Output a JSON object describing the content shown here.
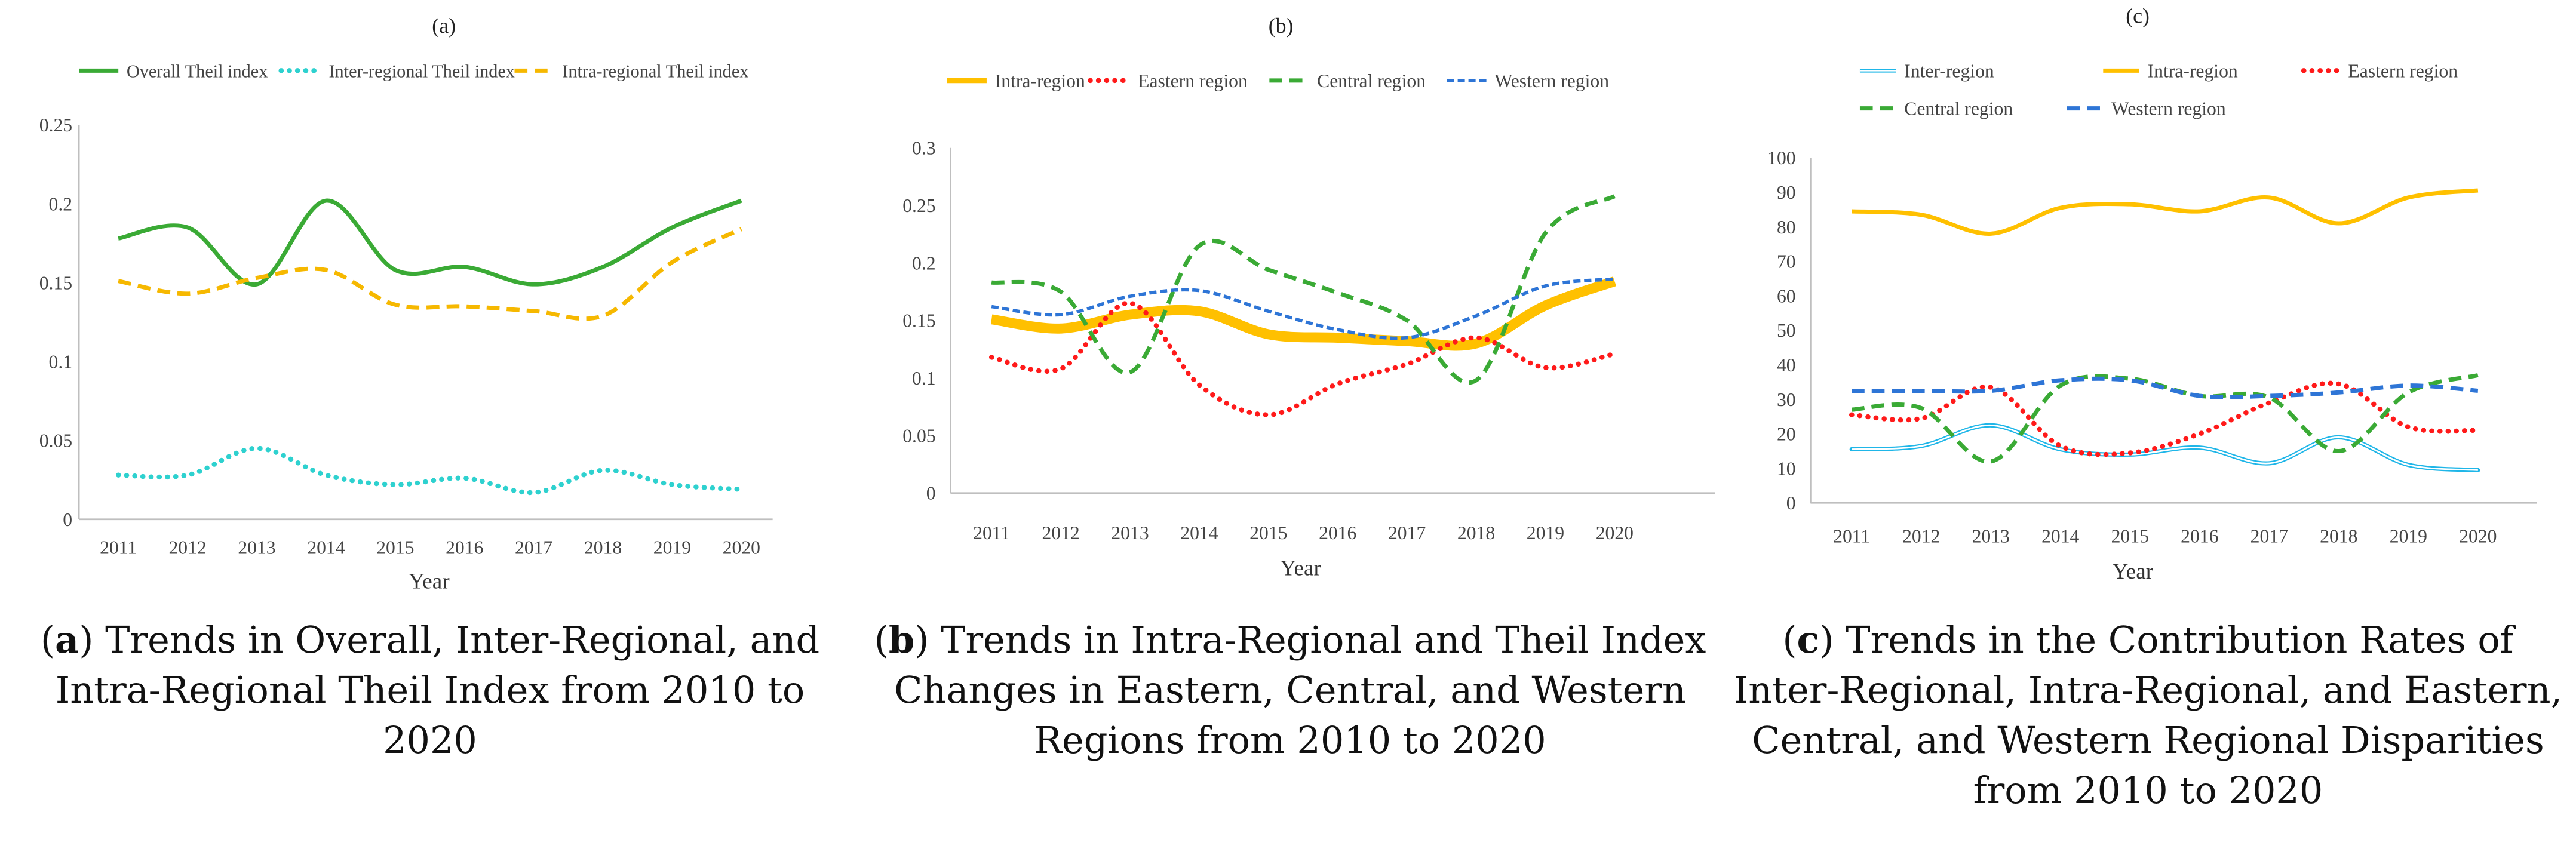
{
  "chart_data": [
    {
      "type": "line",
      "panel_label": "(a)",
      "title": "",
      "xlabel": "Year",
      "ylabel": "",
      "x": [
        "2011",
        "2012",
        "2013",
        "2014",
        "2015",
        "2016",
        "2017",
        "2018",
        "2019",
        "2020"
      ],
      "yticks": [
        "0",
        "0.05",
        "0.1",
        "0.15",
        "0.2",
        "0.25"
      ],
      "ylim": [
        0,
        0.25
      ],
      "legend_position": "top",
      "series": [
        {
          "name": "Overall Theil index",
          "color": "#3aaa35",
          "dash": "solid",
          "values": [
            0.178,
            0.185,
            0.149,
            0.202,
            0.158,
            0.16,
            0.149,
            0.16,
            0.185,
            0.202
          ]
        },
        {
          "name": "Inter-regional Theil index",
          "color": "#2ed1cf",
          "dash": "dot",
          "values": [
            0.028,
            0.028,
            0.045,
            0.028,
            0.022,
            0.026,
            0.017,
            0.031,
            0.022,
            0.019
          ]
        },
        {
          "name": "Intra-regional Theil index",
          "color": "#f6b800",
          "dash": "dash",
          "values": [
            0.151,
            0.143,
            0.153,
            0.158,
            0.136,
            0.135,
            0.132,
            0.129,
            0.163,
            0.184
          ]
        }
      ],
      "caption_label": "a",
      "caption_text": "Trends in Overall, Inter-Regional, and Intra-Regional Theil Index from 2010 to 2020"
    },
    {
      "type": "line",
      "panel_label": "(b)",
      "title": "",
      "xlabel": "Year",
      "ylabel": "",
      "x": [
        "2011",
        "2012",
        "2013",
        "2014",
        "2015",
        "2016",
        "2017",
        "2018",
        "2019",
        "2020"
      ],
      "yticks": [
        "0",
        "0.05",
        "0.1",
        "0.15",
        "0.2",
        "0.25",
        "0.3"
      ],
      "ylim": [
        0,
        0.3
      ],
      "legend_position": "top",
      "series": [
        {
          "name": "Intra-region",
          "color": "#ffc000",
          "dash": "thick",
          "values": [
            0.151,
            0.143,
            0.155,
            0.158,
            0.138,
            0.135,
            0.132,
            0.13,
            0.163,
            0.184
          ]
        },
        {
          "name": "Eastern region",
          "color": "#ff1a1a",
          "dash": "dot",
          "values": [
            0.118,
            0.108,
            0.165,
            0.094,
            0.068,
            0.095,
            0.112,
            0.135,
            0.109,
            0.121
          ]
        },
        {
          "name": "Central region",
          "color": "#3aaa35",
          "dash": "dash",
          "values": [
            0.183,
            0.175,
            0.105,
            0.215,
            0.194,
            0.174,
            0.15,
            0.098,
            0.226,
            0.258
          ]
        },
        {
          "name": "Western region",
          "color": "#2e75d6",
          "dash": "fine",
          "values": [
            0.162,
            0.155,
            0.171,
            0.176,
            0.158,
            0.142,
            0.135,
            0.154,
            0.18,
            0.186
          ]
        }
      ],
      "caption_label": "b",
      "caption_text": "Trends in Intra-Regional and Theil Index Changes in Eastern, Central, and Western Regions from 2010 to 2020"
    },
    {
      "type": "line",
      "panel_label": "(c)",
      "title": "",
      "xlabel": "Year",
      "ylabel": "",
      "x": [
        "2011",
        "2012",
        "2013",
        "2014",
        "2015",
        "2016",
        "2017",
        "2018",
        "2019",
        "2020"
      ],
      "yticks": [
        "0",
        "10",
        "20",
        "30",
        "40",
        "50",
        "60",
        "70",
        "80",
        "90",
        "100"
      ],
      "ylim": [
        0,
        100
      ],
      "legend_position": "top",
      "series": [
        {
          "name": "Inter-region",
          "color": "#1fb6e8",
          "dash": "double",
          "values": [
            15.5,
            16.5,
            22.5,
            15.5,
            14,
            16,
            11.5,
            19,
            11,
            9.5
          ]
        },
        {
          "name": "Intra-region",
          "color": "#ffc000",
          "dash": "solid",
          "values": [
            84.5,
            83.5,
            78,
            85.5,
            86.5,
            84.5,
            88.5,
            81,
            88.5,
            90.5
          ]
        },
        {
          "name": "Eastern region",
          "color": "#ff1a1a",
          "dash": "dot",
          "values": [
            25.5,
            24.5,
            33.5,
            16.5,
            14.5,
            20,
            29,
            34.5,
            22,
            21
          ]
        },
        {
          "name": "Central region",
          "color": "#3aaa35",
          "dash": "dash",
          "values": [
            27,
            27.5,
            12,
            34,
            36,
            31,
            30.5,
            15,
            32,
            37
          ]
        },
        {
          "name": "Western region",
          "color": "#2e75d6",
          "dash": "dash",
          "values": [
            32.5,
            32.5,
            32.5,
            35.5,
            35.5,
            31,
            31,
            32,
            34,
            32.5
          ]
        }
      ],
      "caption_label": "c",
      "caption_text": "Trends in the Contribution Rates of Inter-Regional, Intra-Regional, and Eastern, Central, and Western Regional Disparities from 2010 to 2020"
    }
  ]
}
